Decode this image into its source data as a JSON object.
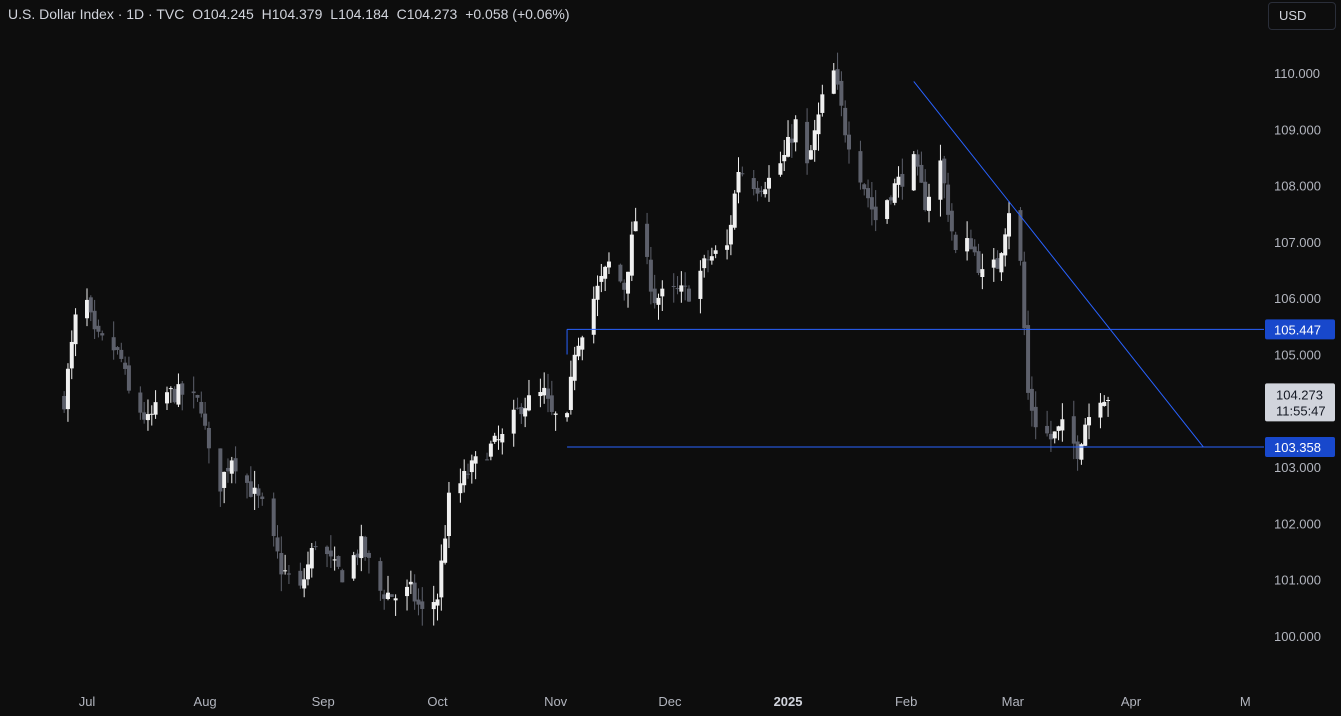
{
  "header": {
    "title": "U.S. Dollar Index · 1D · TVC",
    "open_label": "O",
    "open": "104.245",
    "high_label": "H",
    "high": "104.379",
    "low_label": "L",
    "low": "104.184",
    "close_label": "C",
    "close": "104.273",
    "change": "+0.058 (+0.06%)"
  },
  "currency_button": "USD",
  "chart_data": {
    "type": "candlestick",
    "colors": {
      "up": "#f0f0f0",
      "down": "#5d606b",
      "line": "#2962ff",
      "label_bg": "#1848cc",
      "bg": "#0d0d0d"
    },
    "y_ticks": [
      "110.000",
      "109.000",
      "108.000",
      "107.000",
      "106.000",
      "105.000",
      "104.000",
      "103.000",
      "102.000",
      "101.000",
      "100.000"
    ],
    "x_ticks": [
      {
        "label": "Jul",
        "bold": false
      },
      {
        "label": "Aug",
        "bold": false
      },
      {
        "label": "Sep",
        "bold": false
      },
      {
        "label": "Oct",
        "bold": false
      },
      {
        "label": "Nov",
        "bold": false
      },
      {
        "label": "Dec",
        "bold": false
      },
      {
        "label": "2025",
        "bold": true
      },
      {
        "label": "Feb",
        "bold": false
      },
      {
        "label": "Mar",
        "bold": false
      },
      {
        "label": "Apr",
        "bold": false
      },
      {
        "label": "M",
        "bold": false
      }
    ],
    "price_path": [
      [
        "Jun 25",
        104.2
      ],
      [
        "Jun 28",
        105.6
      ],
      [
        "Jul 1",
        105.9
      ],
      [
        "Jul 3",
        105.3
      ],
      [
        "Jul 8",
        105.1
      ],
      [
        "Jul 10",
        104.9
      ],
      [
        "Jul 12",
        104.3
      ],
      [
        "Jul 17",
        103.8
      ],
      [
        "Jul 22",
        104.3
      ],
      [
        "Jul 26",
        104.3
      ],
      [
        "Jul 31",
        104.1
      ],
      [
        "Aug 2",
        103.2
      ],
      [
        "Aug 5",
        102.7
      ],
      [
        "Aug 8",
        103.2
      ],
      [
        "Aug 13",
        102.6
      ],
      [
        "Aug 16",
        102.3
      ],
      [
        "Aug 21",
        101.2
      ],
      [
        "Aug 26",
        100.8
      ],
      [
        "Aug 30",
        101.7
      ],
      [
        "Sep 4",
        101.2
      ],
      [
        "Sep 6",
        101.1
      ],
      [
        "Sep 11",
        101.6
      ],
      [
        "Sep 16",
        100.8
      ],
      [
        "Sep 20",
        100.7
      ],
      [
        "Sep 24",
        100.8
      ],
      [
        "Sep 27",
        100.4
      ],
      [
        "Oct 1",
        100.7
      ],
      [
        "Oct 4",
        102.4
      ],
      [
        "Oct 9",
        102.9
      ],
      [
        "Oct 14",
        103.3
      ],
      [
        "Oct 18",
        103.5
      ],
      [
        "Oct 23",
        104.1
      ],
      [
        "Oct 29",
        104.3
      ],
      [
        "Oct 31",
        103.9
      ],
      [
        "Nov 4",
        103.8
      ],
      [
        "Nov 6",
        105.1
      ],
      [
        "Nov 11",
        106.0
      ],
      [
        "Nov 15",
        106.6
      ],
      [
        "Nov 19",
        106.2
      ],
      [
        "Nov 22",
        107.4
      ],
      [
        "Nov 27",
        106.0
      ],
      [
        "Dec 2",
        106.1
      ],
      [
        "Dec 6",
        106.1
      ],
      [
        "Dec 11",
        106.7
      ],
      [
        "Dec 16",
        106.9
      ],
      [
        "Dec 19",
        108.3
      ],
      [
        "Dec 24",
        108.0
      ],
      [
        "Dec 27",
        108.1
      ],
      [
        "Dec 31",
        108.5
      ],
      [
        "Jan 3",
        109.1
      ],
      [
        "Jan 6",
        108.3
      ],
      [
        "Jan 10",
        109.5
      ],
      [
        "Jan 13",
        110.0
      ],
      [
        "Jan 16",
        109.0
      ],
      [
        "Jan 20",
        108.2
      ],
      [
        "Jan 24",
        107.4
      ],
      [
        "Jan 28",
        107.9
      ],
      [
        "Feb 3",
        108.4
      ],
      [
        "Feb 6",
        107.7
      ],
      [
        "Feb 10",
        108.4
      ],
      [
        "Feb 14",
        106.8
      ],
      [
        "Feb 18",
        107.0
      ],
      [
        "Feb 21",
        106.4
      ],
      [
        "Feb 25",
        106.6
      ],
      [
        "Feb 28",
        107.6
      ],
      [
        "Mar 3",
        106.6
      ],
      [
        "Mar 5",
        104.3
      ],
      [
        "Mar 7",
        103.8
      ],
      [
        "Mar 11",
        103.5
      ],
      [
        "Mar 14",
        103.7
      ],
      [
        "Mar 18",
        103.3
      ],
      [
        "Mar 20",
        103.8
      ],
      [
        "Mar 24",
        104.3
      ],
      [
        "Mar 26",
        104.27
      ]
    ],
    "last_close": 104.273,
    "countdown": "11:55:47",
    "lines": [
      {
        "name": "resistance",
        "value": 105.447,
        "from": "Nov 4",
        "label": "105.447"
      },
      {
        "name": "support",
        "value": 103.358,
        "from": "Nov 4",
        "label": "103.358"
      },
      {
        "name": "trendline",
        "from_date": "Feb 3",
        "from_value": 109.85,
        "to_date": "Apr 20",
        "to_value": 103.358
      }
    ]
  }
}
